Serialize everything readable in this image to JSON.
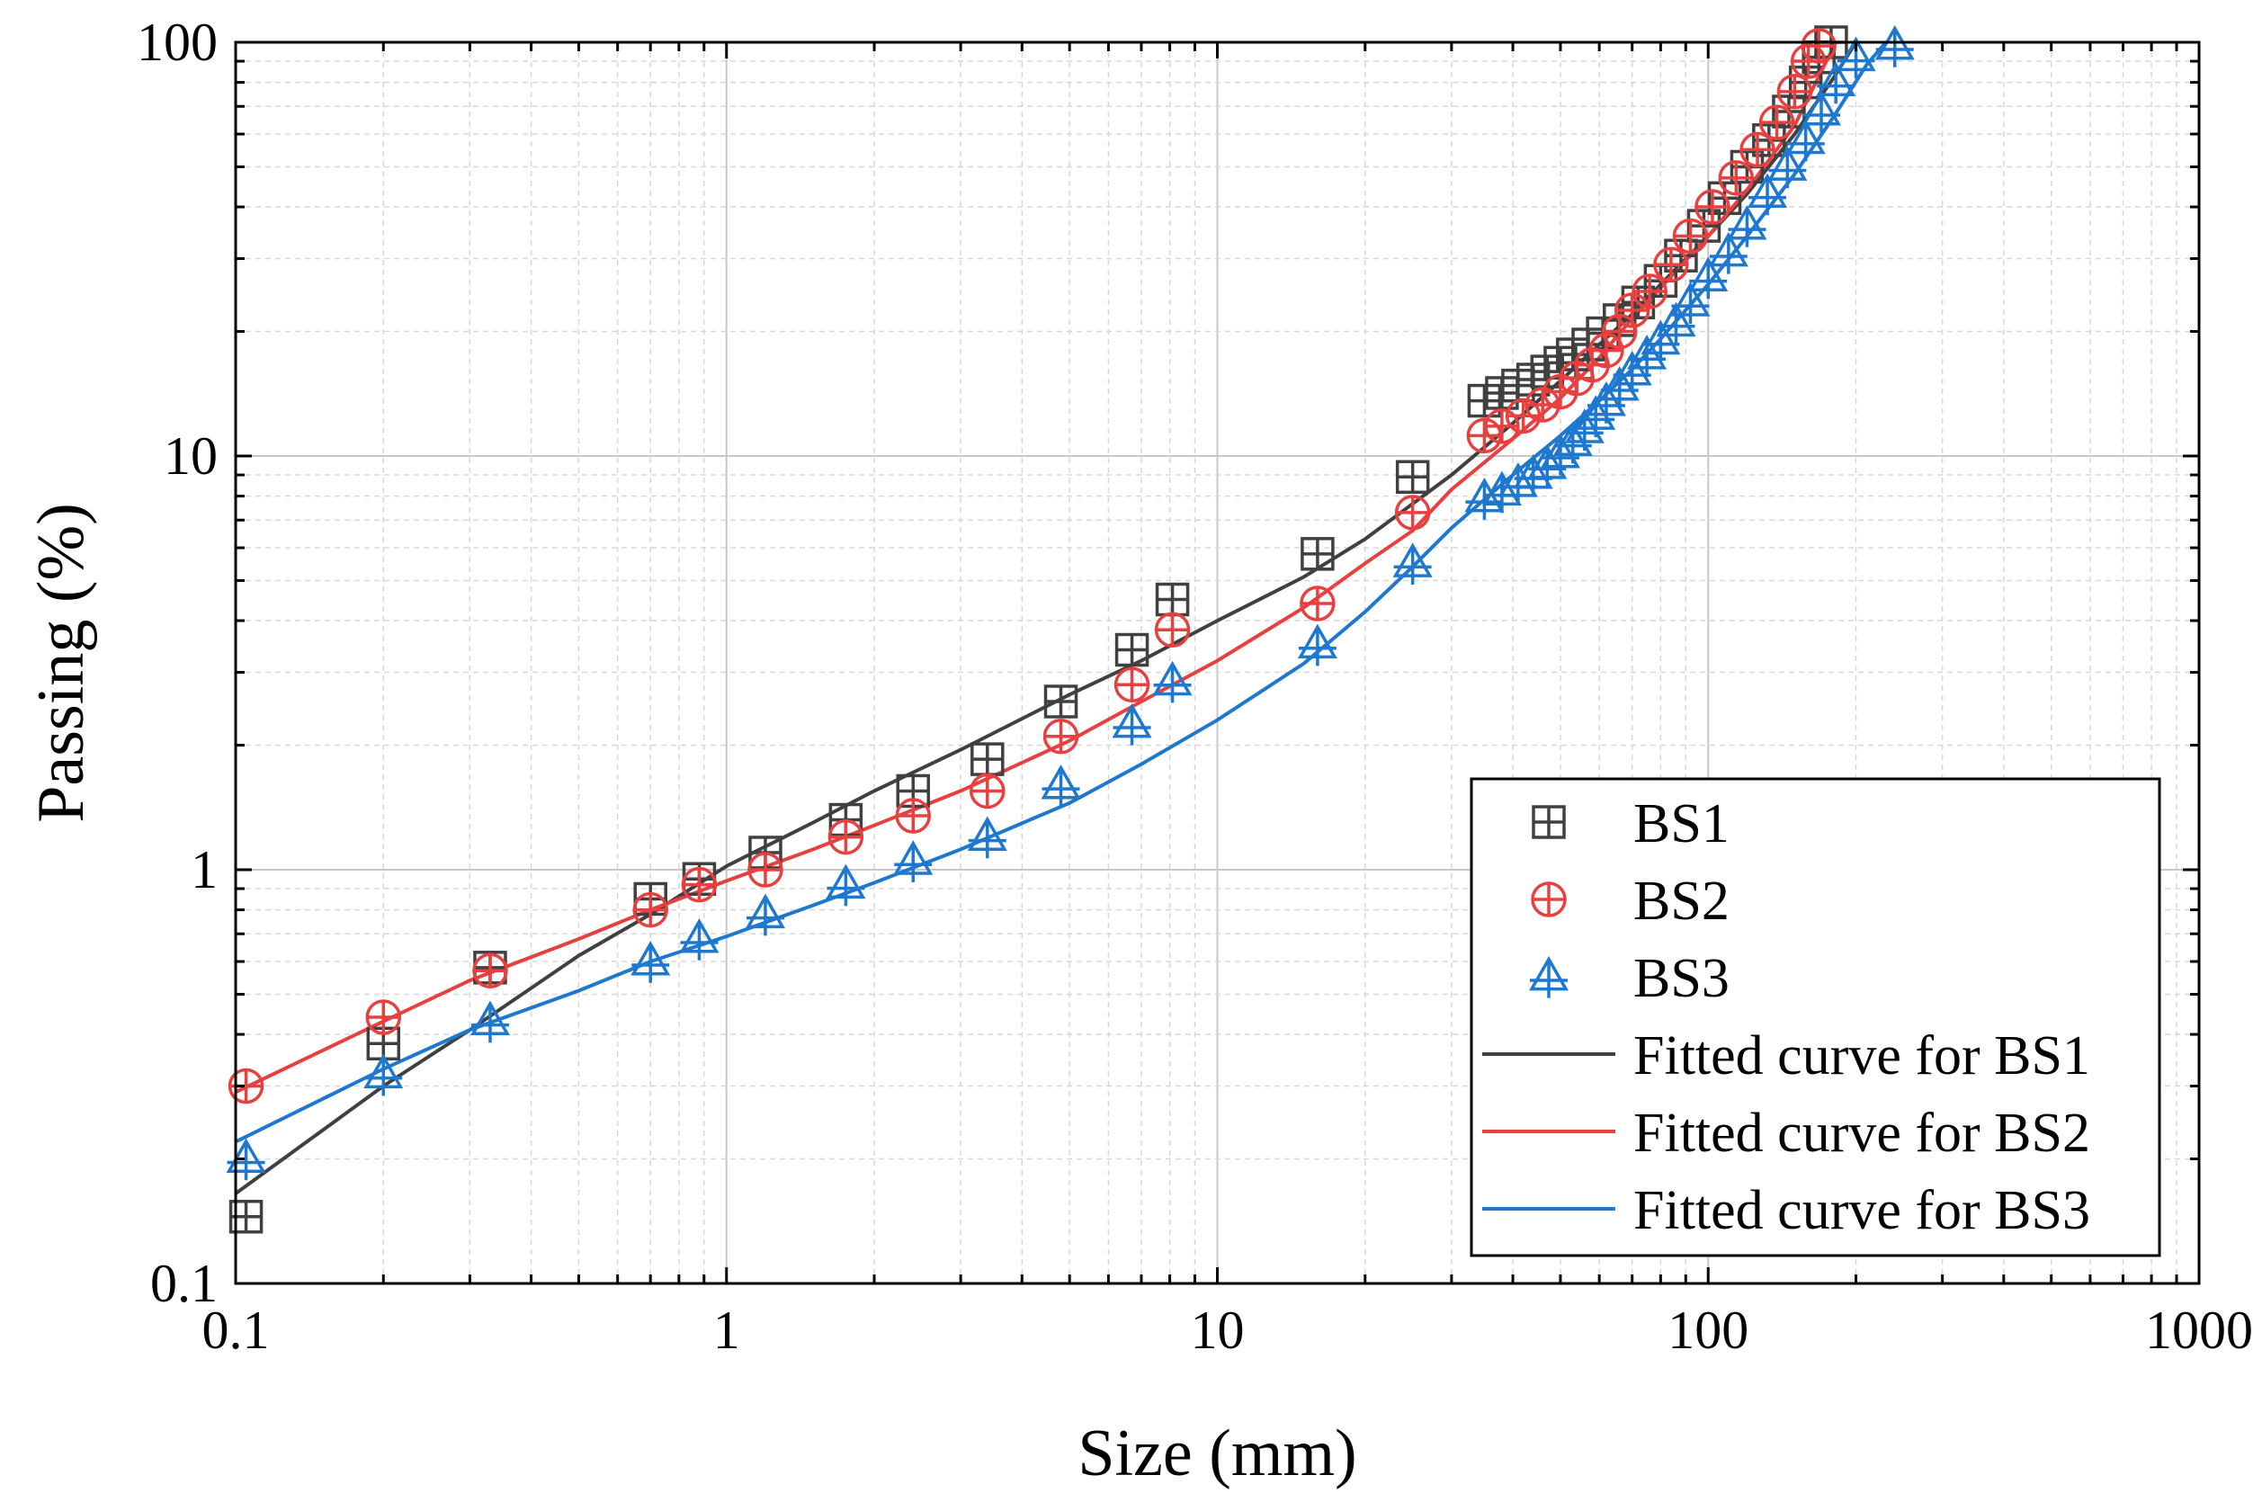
{
  "chart_data": {
    "type": "scatter",
    "title": "",
    "xlabel": "Size (mm)",
    "ylabel": "Passing (%)",
    "xscale": "log",
    "yscale": "log",
    "xlim": [
      0.1,
      1000
    ],
    "ylim": [
      0.1,
      100
    ],
    "x_ticks": [
      "0.1",
      "1",
      "10",
      "100",
      "1000"
    ],
    "y_ticks": [
      "0.1",
      "1",
      "10",
      "100"
    ],
    "grid": true,
    "legend_position": "bottom-right",
    "colors": {
      "BS1": "#404040",
      "BS2": "#e8403f",
      "BS3": "#1e78d0"
    },
    "series": [
      {
        "name": "BS1",
        "marker": "square-cross",
        "color": "#404040",
        "points": [
          [
            0.105,
            0.145
          ],
          [
            0.2,
            0.38
          ],
          [
            0.33,
            0.58
          ],
          [
            0.7,
            0.85
          ],
          [
            0.88,
            0.95
          ],
          [
            1.2,
            1.1
          ],
          [
            1.75,
            1.32
          ],
          [
            2.4,
            1.55
          ],
          [
            3.4,
            1.85
          ],
          [
            4.8,
            2.55
          ],
          [
            6.7,
            3.4
          ],
          [
            8.1,
            4.5
          ],
          [
            16,
            5.8
          ],
          [
            25,
            8.9
          ],
          [
            35,
            13.6
          ],
          [
            38,
            14.2
          ],
          [
            41,
            14.8
          ],
          [
            44,
            15.3
          ],
          [
            47,
            16
          ],
          [
            50,
            16.8
          ],
          [
            53,
            17.6
          ],
          [
            57,
            18.6
          ],
          [
            61,
            19.8
          ],
          [
            66,
            21.3
          ],
          [
            72,
            23.5
          ],
          [
            80,
            26.5
          ],
          [
            88,
            30.5
          ],
          [
            98,
            36
          ],
          [
            108,
            42
          ],
          [
            120,
            50
          ],
          [
            133,
            58
          ],
          [
            146,
            68
          ],
          [
            158,
            80
          ],
          [
            168,
            92
          ],
          [
            178,
            100
          ]
        ]
      },
      {
        "name": "BS2",
        "marker": "circle-cross",
        "color": "#e8403f",
        "points": [
          [
            0.105,
            0.3
          ],
          [
            0.2,
            0.44
          ],
          [
            0.33,
            0.57
          ],
          [
            0.7,
            0.8
          ],
          [
            0.88,
            0.92
          ],
          [
            1.2,
            1.0
          ],
          [
            1.75,
            1.2
          ],
          [
            2.4,
            1.35
          ],
          [
            3.4,
            1.55
          ],
          [
            4.8,
            2.1
          ],
          [
            6.7,
            2.8
          ],
          [
            8.1,
            3.8
          ],
          [
            16,
            4.4
          ],
          [
            25,
            7.3
          ],
          [
            35,
            11.2
          ],
          [
            38,
            11.8
          ],
          [
            42,
            12.5
          ],
          [
            46,
            13.3
          ],
          [
            50,
            14.3
          ],
          [
            54,
            15.4
          ],
          [
            58,
            16.6
          ],
          [
            62,
            18.0
          ],
          [
            66,
            20.0
          ],
          [
            70,
            22.5
          ],
          [
            76,
            25
          ],
          [
            84,
            29
          ],
          [
            92,
            34
          ],
          [
            102,
            40
          ],
          [
            114,
            47
          ],
          [
            126,
            55
          ],
          [
            138,
            64
          ],
          [
            150,
            76
          ],
          [
            160,
            90
          ],
          [
            168,
            98
          ]
        ]
      },
      {
        "name": "BS3",
        "marker": "triangle-cross",
        "color": "#1e78d0",
        "points": [
          [
            0.105,
            0.2
          ],
          [
            0.2,
            0.32
          ],
          [
            0.33,
            0.43
          ],
          [
            0.7,
            0.6
          ],
          [
            0.88,
            0.68
          ],
          [
            1.2,
            0.78
          ],
          [
            1.75,
            0.92
          ],
          [
            2.4,
            1.05
          ],
          [
            3.4,
            1.2
          ],
          [
            4.8,
            1.6
          ],
          [
            6.7,
            2.25
          ],
          [
            8.1,
            2.85
          ],
          [
            16,
            3.5
          ],
          [
            25,
            5.5
          ],
          [
            35,
            7.9
          ],
          [
            38,
            8.2
          ],
          [
            41,
            8.6
          ],
          [
            44,
            9.0
          ],
          [
            47,
            9.5
          ],
          [
            50,
            10.1
          ],
          [
            53,
            10.8
          ],
          [
            56,
            11.6
          ],
          [
            59,
            12.5
          ],
          [
            62,
            13.5
          ],
          [
            66,
            14.7
          ],
          [
            70,
            16
          ],
          [
            75,
            17.5
          ],
          [
            80,
            19
          ],
          [
            86,
            21
          ],
          [
            92,
            23.5
          ],
          [
            100,
            27
          ],
          [
            110,
            31
          ],
          [
            120,
            36
          ],
          [
            132,
            43
          ],
          [
            145,
            50
          ],
          [
            158,
            58
          ],
          [
            170,
            68
          ],
          [
            182,
            80
          ],
          [
            200,
            92
          ],
          [
            240,
            98
          ]
        ]
      }
    ],
    "fitted_curves": [
      {
        "name": "Fitted curve for BS1",
        "color": "#404040",
        "points": [
          [
            0.1,
            0.165
          ],
          [
            0.2,
            0.3
          ],
          [
            0.3,
            0.41
          ],
          [
            0.5,
            0.62
          ],
          [
            0.7,
            0.78
          ],
          [
            1,
            1.02
          ],
          [
            1.5,
            1.3
          ],
          [
            2,
            1.55
          ],
          [
            3,
            1.95
          ],
          [
            5,
            2.65
          ],
          [
            7,
            3.2
          ],
          [
            10,
            4.0
          ],
          [
            15,
            5.1
          ],
          [
            20,
            6.3
          ],
          [
            30,
            9.0
          ],
          [
            40,
            12.0
          ],
          [
            50,
            15.2
          ],
          [
            60,
            18.6
          ],
          [
            70,
            22
          ],
          [
            80,
            26
          ],
          [
            100,
            34
          ],
          [
            120,
            43
          ],
          [
            150,
            60
          ],
          [
            180,
            82
          ],
          [
            200,
            100
          ]
        ]
      },
      {
        "name": "Fitted curve for BS2",
        "color": "#e8403f",
        "points": [
          [
            0.1,
            0.29
          ],
          [
            0.2,
            0.43
          ],
          [
            0.3,
            0.54
          ],
          [
            0.5,
            0.68
          ],
          [
            0.7,
            0.8
          ],
          [
            1,
            0.94
          ],
          [
            1.5,
            1.12
          ],
          [
            2,
            1.28
          ],
          [
            3,
            1.55
          ],
          [
            5,
            2.05
          ],
          [
            7,
            2.55
          ],
          [
            10,
            3.2
          ],
          [
            15,
            4.3
          ],
          [
            20,
            5.5
          ],
          [
            25,
            6.6
          ],
          [
            30,
            8.3
          ],
          [
            40,
            11.0
          ],
          [
            50,
            13.8
          ],
          [
            60,
            17.3
          ],
          [
            70,
            21.5
          ],
          [
            80,
            25.5
          ],
          [
            100,
            34
          ],
          [
            120,
            44
          ],
          [
            150,
            63
          ],
          [
            170,
            85
          ],
          [
            182,
            100
          ]
        ]
      },
      {
        "name": "Fitted curve for BS3",
        "color": "#1e78d0",
        "points": [
          [
            0.1,
            0.22
          ],
          [
            0.2,
            0.33
          ],
          [
            0.3,
            0.41
          ],
          [
            0.5,
            0.51
          ],
          [
            0.7,
            0.6
          ],
          [
            1,
            0.69
          ],
          [
            1.5,
            0.82
          ],
          [
            2,
            0.93
          ],
          [
            3,
            1.12
          ],
          [
            5,
            1.45
          ],
          [
            7,
            1.8
          ],
          [
            10,
            2.3
          ],
          [
            15,
            3.15
          ],
          [
            20,
            4.2
          ],
          [
            25,
            5.4
          ],
          [
            30,
            6.7
          ],
          [
            40,
            9.0
          ],
          [
            50,
            11.2
          ],
          [
            60,
            13.6
          ],
          [
            70,
            16.2
          ],
          [
            80,
            19.2
          ],
          [
            100,
            26
          ],
          [
            120,
            34
          ],
          [
            150,
            48
          ],
          [
            180,
            66
          ],
          [
            210,
            88
          ],
          [
            230,
            100
          ]
        ]
      }
    ]
  }
}
